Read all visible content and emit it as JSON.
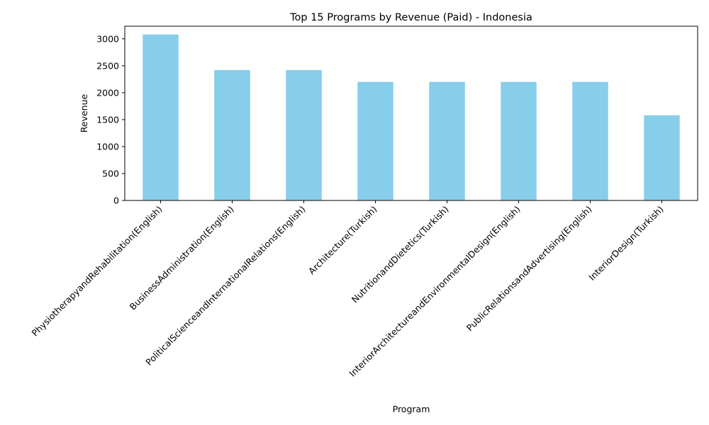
{
  "chart_data": {
    "type": "bar",
    "title": "Top 15 Programs by Revenue (Paid) - Indonesia",
    "xlabel": "Program",
    "ylabel": "Revenue",
    "categories": [
      "PhysiotherapyandRehabilitation(English)",
      "BusinessAdministration(English)",
      "PoliticalScienceandInternationalRelations(English)",
      "Architecture(Turkish)",
      "NutritionandDietetics(Turkish)",
      "InteriorArchitectureandEnvironmentalDesign(English)",
      "PublicRelationsandAdvertising(English)",
      "InteriorDesign(Turkish)"
    ],
    "values": [
      3080,
      2420,
      2420,
      2200,
      2200,
      2200,
      2200,
      1580
    ],
    "ylim": [
      0,
      3234
    ],
    "yticks": [
      0,
      500,
      1000,
      1500,
      2000,
      2500,
      3000
    ],
    "grid": false,
    "bar_color": "#87ceeb"
  }
}
